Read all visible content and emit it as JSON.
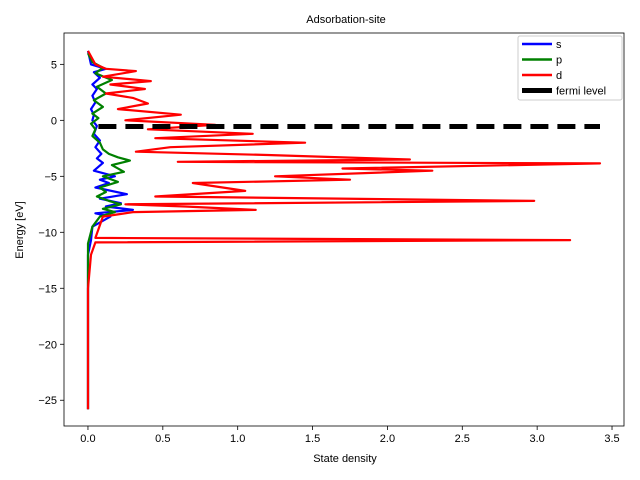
{
  "chart_data": {
    "type": "line",
    "title": "Adsorbation-site",
    "xlabel": "State density",
    "ylabel": "Energy [eV]",
    "xlim": [
      -0.16,
      3.58
    ],
    "ylim": [
      -27.3,
      7.8
    ],
    "xticks": [
      0.0,
      0.5,
      1.0,
      1.5,
      2.0,
      2.5,
      3.0,
      3.5
    ],
    "xtick_labels": [
      "0.0",
      "0.5",
      "1.0",
      "1.5",
      "2.0",
      "2.5",
      "3.0",
      "3.5"
    ],
    "yticks": [
      5,
      0,
      -5,
      -10,
      -15,
      -20,
      -25
    ],
    "ytick_labels": [
      "5",
      "0",
      "−5",
      "−10",
      "−15",
      "−20",
      "−25"
    ],
    "legend_position": "top-right",
    "series": [
      {
        "name": "s",
        "color": "#0000ff",
        "x": [
          0.0,
          0.02,
          0.12,
          0.04,
          0.08,
          0.03,
          0.06,
          0.03,
          0.05,
          0.02,
          0.04,
          0.03,
          0.06,
          0.04,
          0.08,
          0.05,
          0.09,
          0.06,
          0.1,
          0.04,
          0.18,
          0.08,
          0.14,
          0.05,
          0.26,
          0.08,
          0.22,
          0.12,
          0.3,
          0.05,
          0.15,
          0.03,
          0.02,
          0.0,
          0.0,
          0.0,
          0.0,
          0.0
        ],
        "y": [
          6.2,
          5.0,
          4.6,
          4.3,
          3.8,
          3.2,
          2.8,
          2.2,
          1.6,
          1.0,
          0.5,
          0.0,
          -0.5,
          -1.2,
          -1.8,
          -2.4,
          -3.0,
          -3.4,
          -3.8,
          -4.5,
          -5.0,
          -5.3,
          -5.6,
          -6.0,
          -6.6,
          -7.0,
          -7.4,
          -7.7,
          -8.0,
          -8.3,
          -8.6,
          -9.5,
          -10.7,
          -12.0,
          -15.0,
          -20.0,
          -24.0,
          -25.8
        ]
      },
      {
        "name": "p",
        "color": "#008000",
        "x": [
          0.0,
          0.03,
          0.1,
          0.05,
          0.16,
          0.06,
          0.12,
          0.04,
          0.1,
          0.03,
          0.07,
          0.02,
          0.05,
          0.03,
          0.08,
          0.1,
          0.14,
          0.2,
          0.28,
          0.16,
          0.24,
          0.1,
          0.2,
          0.08,
          0.12,
          0.06,
          0.14,
          0.22,
          0.1,
          0.18,
          0.08,
          0.03,
          0.0,
          0.0,
          0.0,
          0.0
        ],
        "y": [
          6.0,
          5.2,
          4.7,
          4.2,
          3.6,
          3.0,
          2.4,
          1.8,
          1.2,
          0.6,
          0.2,
          -0.3,
          -0.8,
          -1.4,
          -2.0,
          -2.6,
          -3.0,
          -3.3,
          -3.6,
          -4.0,
          -4.6,
          -5.0,
          -5.5,
          -6.0,
          -6.4,
          -6.8,
          -7.2,
          -7.5,
          -7.9,
          -8.2,
          -8.6,
          -9.5,
          -11.0,
          -15.0,
          -22.0,
          -25.8
        ]
      },
      {
        "name": "d",
        "color": "#ff0000",
        "x": [
          0.0,
          0.05,
          0.12,
          0.32,
          0.1,
          0.42,
          0.15,
          0.38,
          0.12,
          0.3,
          0.4,
          0.2,
          0.62,
          0.25,
          0.85,
          0.4,
          1.1,
          0.45,
          1.45,
          0.55,
          0.32,
          1.2,
          2.15,
          0.6,
          3.42,
          1.7,
          2.3,
          1.25,
          1.75,
          0.7,
          0.9,
          1.05,
          0.45,
          2.98,
          0.25,
          0.65,
          1.12,
          0.3,
          0.1,
          0.05,
          3.22,
          0.05,
          0.02,
          0.0,
          0.0,
          0.0
        ],
        "y": [
          6.2,
          5.0,
          4.6,
          4.4,
          3.9,
          3.5,
          3.2,
          2.8,
          2.4,
          2.0,
          1.5,
          1.0,
          0.5,
          0.0,
          -0.4,
          -0.8,
          -1.2,
          -1.6,
          -2.0,
          -2.4,
          -2.8,
          -3.1,
          -3.5,
          -3.7,
          -3.85,
          -4.3,
          -4.5,
          -5.0,
          -5.3,
          -5.6,
          -6.0,
          -6.3,
          -6.8,
          -7.2,
          -7.5,
          -7.7,
          -8.0,
          -8.2,
          -8.6,
          -10.5,
          -10.7,
          -10.9,
          -12.0,
          -15.0,
          -22.0,
          -25.8
        ]
      },
      {
        "name": "fermi level",
        "color": "#000000",
        "style": "dashed",
        "x": [
          0.07,
          3.42
        ],
        "y": [
          -0.55,
          -0.55
        ]
      }
    ]
  }
}
